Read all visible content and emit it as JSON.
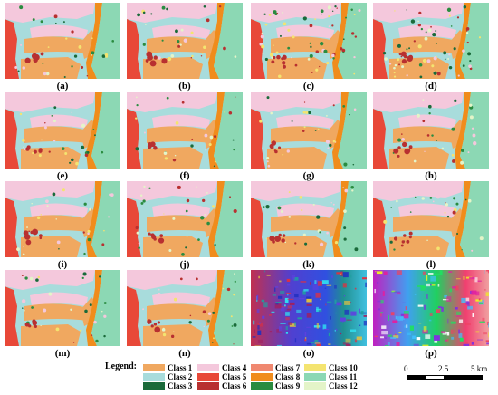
{
  "panels": [
    {
      "label": "(a)",
      "kind": "map",
      "seed": 1
    },
    {
      "label": "(b)",
      "kind": "map",
      "seed": 2
    },
    {
      "label": "(c)",
      "kind": "map",
      "seed": 3
    },
    {
      "label": "(d)",
      "kind": "map",
      "seed": 4
    },
    {
      "label": "(e)",
      "kind": "map",
      "seed": 5
    },
    {
      "label": "(f)",
      "kind": "map",
      "seed": 6
    },
    {
      "label": "(g)",
      "kind": "map",
      "seed": 7
    },
    {
      "label": "(h)",
      "kind": "map",
      "seed": 8
    },
    {
      "label": "(i)",
      "kind": "map",
      "seed": 9
    },
    {
      "label": "(j)",
      "kind": "map",
      "seed": 10
    },
    {
      "label": "(k)",
      "kind": "map",
      "seed": 11
    },
    {
      "label": "(l)",
      "kind": "map",
      "seed": 12
    },
    {
      "label": "(m)",
      "kind": "map",
      "seed": 13
    },
    {
      "label": "(n)",
      "kind": "map",
      "seed": 14
    },
    {
      "label": "(o)",
      "kind": "falsecolor",
      "seed": 15
    },
    {
      "label": "(p)",
      "kind": "falsecolor2",
      "seed": 16
    }
  ],
  "legend": {
    "title": "Legend:",
    "classes": [
      {
        "name": "Class 1",
        "color": "#f0a860"
      },
      {
        "name": "Class 2",
        "color": "#a8dcdc"
      },
      {
        "name": "Class 3",
        "color": "#1a6a3a"
      },
      {
        "name": "Class 4",
        "color": "#f4c8dc"
      },
      {
        "name": "Class 5",
        "color": "#e84838"
      },
      {
        "name": "Class 6",
        "color": "#b83030"
      },
      {
        "name": "Class 7",
        "color": "#f08870"
      },
      {
        "name": "Class 8",
        "color": "#f08c1c"
      },
      {
        "name": "Class 9",
        "color": "#2a8c40"
      },
      {
        "name": "Class 10",
        "color": "#f4e470"
      },
      {
        "name": "Class 11",
        "color": "#8cd8b4"
      },
      {
        "name": "Class 12",
        "color": "#e4f4c8"
      }
    ]
  },
  "scale": {
    "ticks": [
      "0",
      "2.5",
      "5 km"
    ]
  }
}
